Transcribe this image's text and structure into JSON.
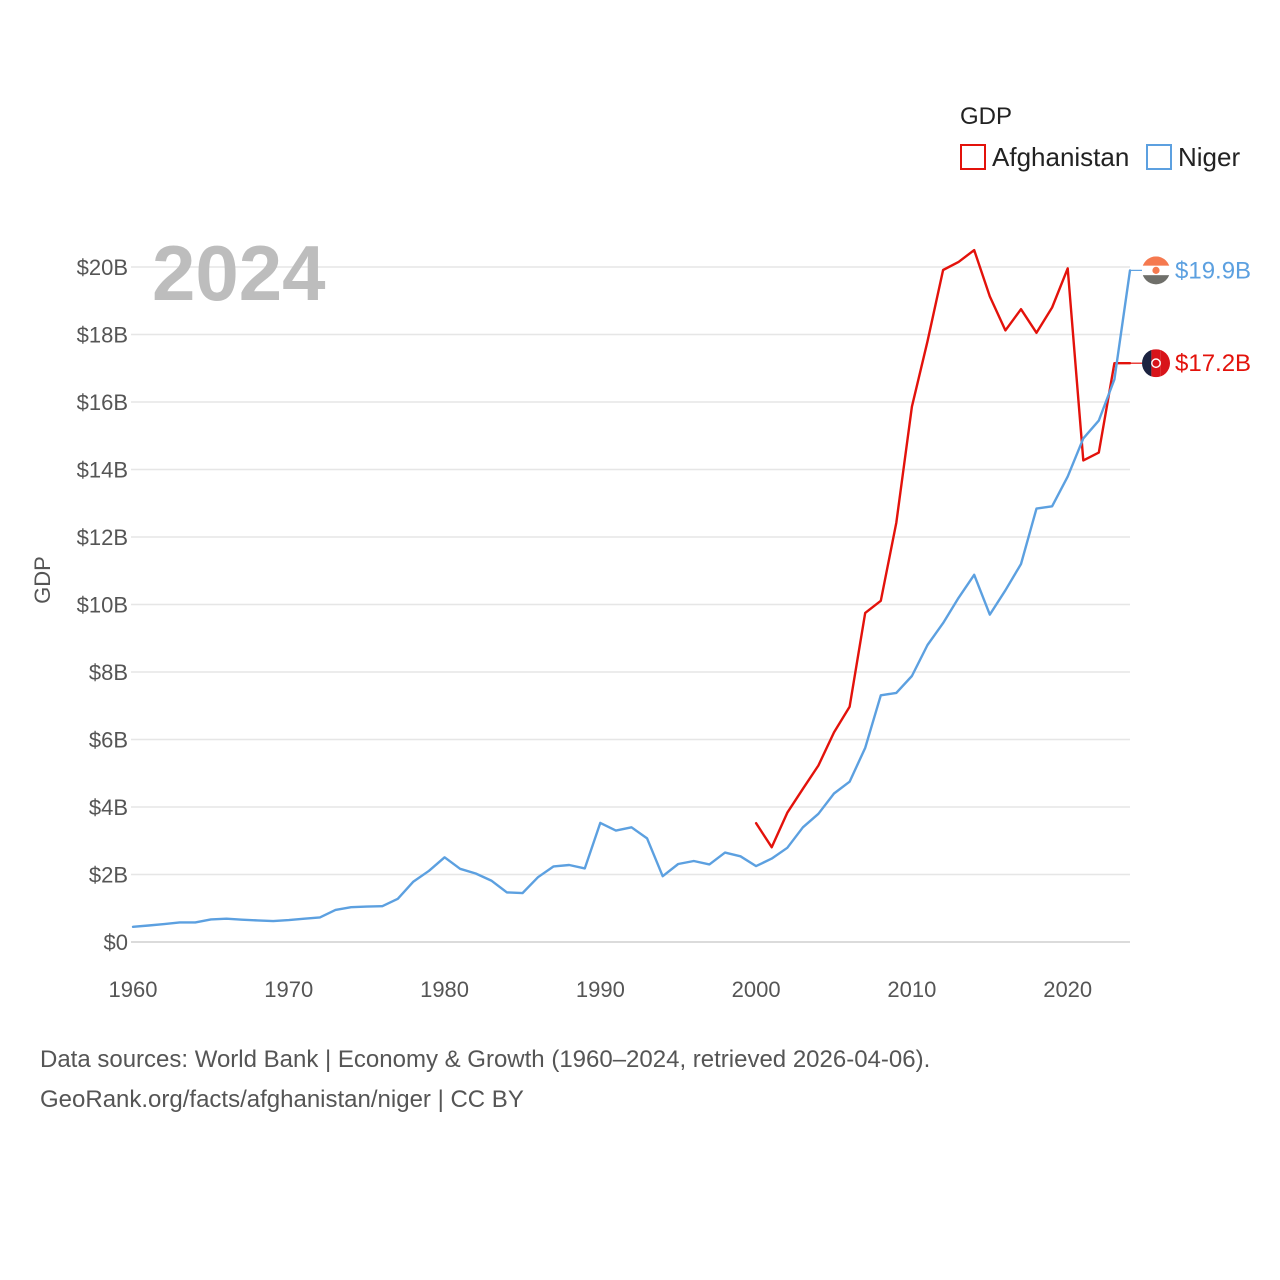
{
  "chart_data": {
    "type": "line",
    "title": "GDP",
    "xlabel": "",
    "ylabel": "GDP",
    "year_label": "2024",
    "xlim": [
      1960,
      2024
    ],
    "ylim": [
      0,
      20
    ],
    "x_ticks": [
      1960,
      1970,
      1980,
      1990,
      2000,
      2010,
      2020
    ],
    "x_tick_labels": [
      "1960",
      "1970",
      "1980",
      "1990",
      "2000",
      "2010",
      "2020"
    ],
    "y_ticks": [
      0,
      2,
      4,
      6,
      8,
      10,
      12,
      14,
      16,
      18,
      20
    ],
    "y_tick_labels": [
      "$0",
      "$2B",
      "$4B",
      "$6B",
      "$8B",
      "$10B",
      "$12B",
      "$14B",
      "$16B",
      "$18B",
      "$20B"
    ],
    "legend": {
      "title": "GDP",
      "position": "top-right"
    },
    "series": [
      {
        "name": "Afghanistan",
        "color": "#e3120b",
        "end_label": "$17.2B",
        "flag_icon": "afghanistan-flag-icon",
        "x": [
          2000,
          2001,
          2002,
          2003,
          2004,
          2005,
          2006,
          2007,
          2008,
          2009,
          2010,
          2011,
          2012,
          2013,
          2014,
          2015,
          2016,
          2017,
          2018,
          2019,
          2020,
          2021,
          2022,
          2023,
          2024
        ],
        "values": [
          3.52,
          2.81,
          3.83,
          4.54,
          5.23,
          6.21,
          6.97,
          9.75,
          10.11,
          12.42,
          15.86,
          17.8,
          19.91,
          20.15,
          20.5,
          19.13,
          18.12,
          18.75,
          18.05,
          18.8,
          19.96,
          14.27,
          14.5,
          17.15,
          17.15
        ]
      },
      {
        "name": "Niger",
        "color": "#5ca0e0",
        "end_label": "$19.9B",
        "flag_icon": "niger-flag-icon",
        "x": [
          1960,
          1961,
          1962,
          1963,
          1964,
          1965,
          1966,
          1967,
          1968,
          1969,
          1970,
          1971,
          1972,
          1973,
          1974,
          1975,
          1976,
          1977,
          1978,
          1979,
          1980,
          1981,
          1982,
          1983,
          1984,
          1985,
          1986,
          1987,
          1988,
          1989,
          1990,
          1991,
          1992,
          1993,
          1994,
          1995,
          1996,
          1997,
          1998,
          1999,
          2000,
          2001,
          2002,
          2003,
          2004,
          2005,
          2006,
          2007,
          2008,
          2009,
          2010,
          2011,
          2012,
          2013,
          2014,
          2015,
          2016,
          2017,
          2018,
          2019,
          2020,
          2021,
          2022,
          2023,
          2024
        ],
        "values": [
          0.45,
          0.49,
          0.53,
          0.58,
          0.58,
          0.67,
          0.69,
          0.66,
          0.64,
          0.62,
          0.65,
          0.69,
          0.73,
          0.95,
          1.03,
          1.05,
          1.06,
          1.28,
          1.79,
          2.11,
          2.51,
          2.17,
          2.03,
          1.82,
          1.47,
          1.45,
          1.92,
          2.24,
          2.28,
          2.18,
          3.53,
          3.3,
          3.4,
          3.07,
          1.95,
          2.31,
          2.4,
          2.3,
          2.65,
          2.54,
          2.25,
          2.47,
          2.79,
          3.4,
          3.8,
          4.4,
          4.75,
          5.75,
          7.31,
          7.38,
          7.88,
          8.8,
          9.45,
          10.2,
          10.88,
          9.7,
          10.42,
          11.2,
          12.84,
          12.91,
          13.79,
          14.92,
          15.45,
          16.67,
          19.9
        ]
      }
    ]
  },
  "footer": {
    "source_line": "Data sources: World Bank | Economy & Growth (1960–2024, retrieved 2026-04-06).",
    "credit_line": "GeoRank.org/facts/afghanistan/niger | CC BY"
  }
}
